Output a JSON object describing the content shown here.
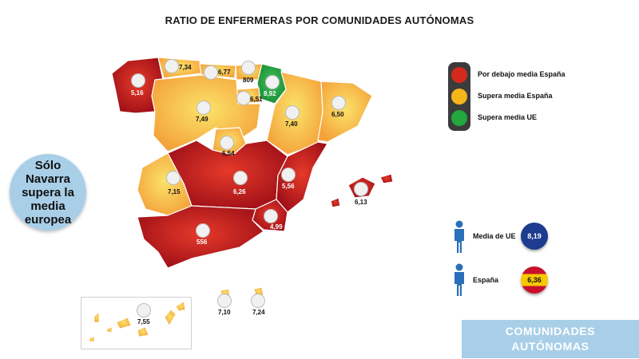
{
  "title": "RATIO DE ENFERMERAS POR COMUNIDADES AUTÓNOMAS",
  "colors": {
    "below_spain": "#b5121b",
    "above_spain": "#f6a93b",
    "above_eu": "#1f9b3a"
  },
  "legend": {
    "below": "Por debajo media España",
    "above_spain": "Supera media España",
    "above_eu": "Supera media UE"
  },
  "regions": {
    "galicia": "5,16",
    "asturias": "7,34",
    "cantabria": "6,77",
    "pais_vasco": "809",
    "navarra": "8,92",
    "la_rioja": "6,51",
    "castilla_leon": "7,49",
    "aragon": "7,40",
    "cataluna": "6,50",
    "madrid": "6,54",
    "extremadura": "7,15",
    "castilla_la_mancha": "6,26",
    "comunidad_valenciana": "5,56",
    "baleares": "6,13",
    "murcia": "4,99",
    "andalucia": "556",
    "canarias": "7,55",
    "ceuta": "7,10",
    "melilla": "7,24"
  },
  "callout": [
    "Sólo",
    "Navarra",
    "supera la",
    "media",
    "europea"
  ],
  "stats": {
    "eu_label": "Media de UE",
    "eu_value": "8,19",
    "spain_label": "España",
    "spain_value": "6,36"
  },
  "banner": [
    "COMUNIDADES",
    "AUTÓNOMAS"
  ]
}
